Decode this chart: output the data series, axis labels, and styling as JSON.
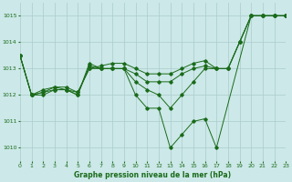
{
  "title": "Graphe pression niveau de la mer (hPa)",
  "bg_color": "#cce8e8",
  "grid_color": "#aacccc",
  "line_color": "#1a6b1a",
  "xlim": [
    0,
    23
  ],
  "ylim": [
    1009.5,
    1015.5
  ],
  "yticks": [
    1010,
    1011,
    1012,
    1013,
    1014,
    1015
  ],
  "xticks": [
    0,
    1,
    2,
    3,
    4,
    5,
    6,
    7,
    8,
    9,
    10,
    11,
    12,
    13,
    14,
    15,
    16,
    17,
    18,
    19,
    20,
    21,
    22,
    23
  ],
  "series": [
    {
      "x": [
        0,
        1,
        2,
        3,
        4,
        5,
        6,
        7,
        8,
        9,
        10,
        11,
        12,
        13,
        14,
        15,
        16,
        17,
        20,
        21,
        22,
        23
      ],
      "y": [
        1013.5,
        1012.0,
        1012.0,
        1012.2,
        1012.2,
        1012.0,
        1013.2,
        1013.0,
        1013.0,
        1013.0,
        1012.0,
        1011.5,
        1011.5,
        1010.0,
        1010.5,
        1011.0,
        1011.1,
        1010.0,
        1015.0,
        1015.0,
        1015.0,
        1015.0
      ]
    },
    {
      "x": [
        0,
        1,
        2,
        3,
        4,
        5,
        6,
        7,
        8,
        9,
        10,
        11,
        12,
        13,
        14,
        15,
        16,
        17,
        18,
        19,
        20,
        21,
        22,
        23
      ],
      "y": [
        1013.5,
        1012.0,
        1012.1,
        1012.2,
        1012.2,
        1012.0,
        1013.1,
        1013.0,
        1013.0,
        1013.0,
        1012.5,
        1012.2,
        1012.0,
        1011.5,
        1012.0,
        1012.5,
        1013.0,
        1013.0,
        1013.0,
        1014.0,
        1015.0,
        1015.0,
        1015.0,
        1015.0
      ]
    },
    {
      "x": [
        0,
        1,
        2,
        3,
        4,
        5,
        6,
        7,
        8,
        9,
        10,
        11,
        12,
        13,
        14,
        15,
        16,
        17,
        18,
        19,
        20,
        21,
        22,
        23
      ],
      "y": [
        1013.5,
        1012.0,
        1012.1,
        1012.3,
        1012.2,
        1012.1,
        1013.0,
        1013.0,
        1013.0,
        1013.0,
        1012.8,
        1012.5,
        1012.5,
        1012.5,
        1012.8,
        1013.0,
        1013.1,
        1013.0,
        1013.0,
        1014.0,
        1015.0,
        1015.0,
        1015.0,
        1015.0
      ]
    },
    {
      "x": [
        0,
        1,
        2,
        3,
        4,
        5,
        6,
        7,
        8,
        9,
        10,
        11,
        12,
        13,
        14,
        15,
        16,
        17,
        18,
        19,
        20,
        21,
        22,
        23
      ],
      "y": [
        1013.5,
        1012.0,
        1012.2,
        1012.3,
        1012.3,
        1012.1,
        1013.0,
        1013.1,
        1013.2,
        1013.2,
        1013.0,
        1012.8,
        1012.8,
        1012.8,
        1013.0,
        1013.2,
        1013.3,
        1013.0,
        1013.0,
        1014.0,
        1015.0,
        1015.0,
        1015.0,
        1015.0
      ]
    }
  ]
}
